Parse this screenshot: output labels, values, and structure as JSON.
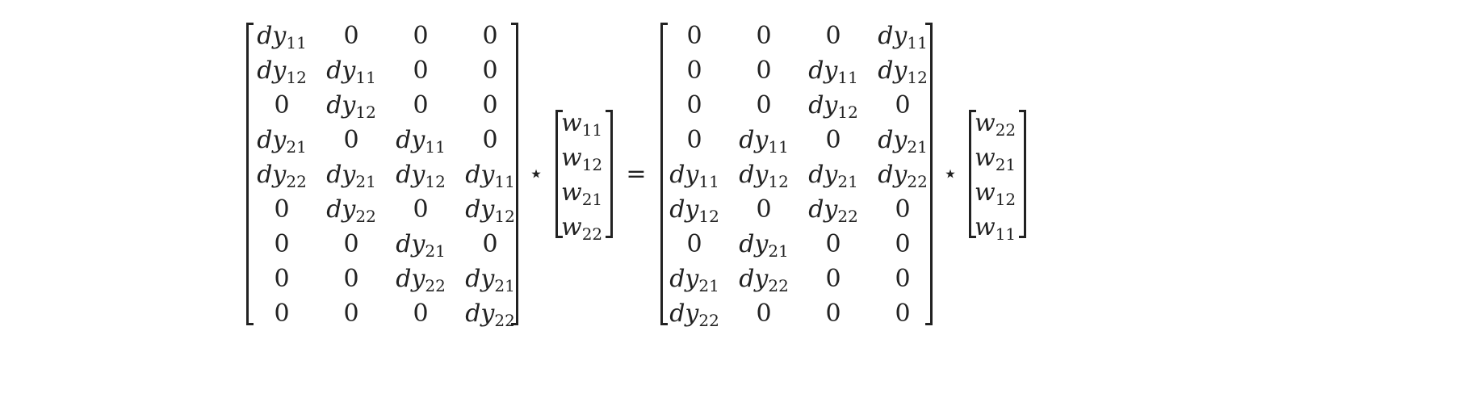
{
  "equation": {
    "lhs_matrix": [
      [
        "dy|11",
        "0",
        "0",
        "0"
      ],
      [
        "dy|12",
        "dy|11",
        "0",
        "0"
      ],
      [
        "0",
        "dy|12",
        "0",
        "0"
      ],
      [
        "dy|21",
        "0",
        "dy|11",
        "0"
      ],
      [
        "dy|22",
        "dy|21",
        "dy|12",
        "dy|11"
      ],
      [
        "0",
        "dy|22",
        "0",
        "dy|12"
      ],
      [
        "0",
        "0",
        "dy|21",
        "0"
      ],
      [
        "0",
        "0",
        "dy|22",
        "dy|21"
      ],
      [
        "0",
        "0",
        "0",
        "dy|22"
      ]
    ],
    "lhs_vector": [
      "w|11",
      "w|12",
      "w|21",
      "w|22"
    ],
    "rhs_matrix": [
      [
        "0",
        "0",
        "0",
        "dy|11"
      ],
      [
        "0",
        "0",
        "dy|11",
        "dy|12"
      ],
      [
        "0",
        "0",
        "dy|12",
        "0"
      ],
      [
        "0",
        "dy|11",
        "0",
        "dy|21"
      ],
      [
        "dy|11",
        "dy|12",
        "dy|21",
        "dy|22"
      ],
      [
        "dy|12",
        "0",
        "dy|22",
        "0"
      ],
      [
        "0",
        "dy|21",
        "0",
        "0"
      ],
      [
        "dy|21",
        "dy|22",
        "0",
        "0"
      ],
      [
        "dy|22",
        "0",
        "0",
        "0"
      ]
    ],
    "rhs_vector": [
      "w|22",
      "w|21",
      "w|12",
      "w|11"
    ],
    "operators": {
      "star_left": "⋆",
      "equals": "=",
      "star_right": "⋆"
    }
  }
}
